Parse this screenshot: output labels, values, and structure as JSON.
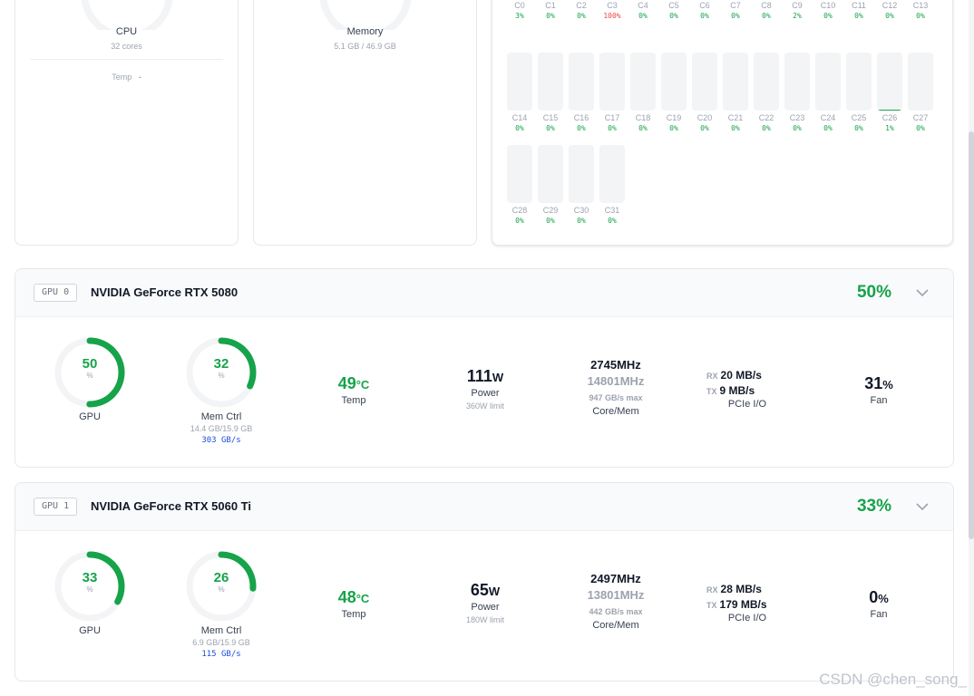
{
  "cpu_card": {
    "label": "CPU",
    "cores": "32 cores",
    "temp_label": "Temp",
    "temp_value": "-"
  },
  "memory_card": {
    "label": "Memory",
    "usage": "5.1 GB / 46.9 GB"
  },
  "cores": [
    {
      "name": "C0",
      "pct": "3%",
      "value": 3
    },
    {
      "name": "C1",
      "pct": "0%",
      "value": 0
    },
    {
      "name": "C2",
      "pct": "0%",
      "value": 0
    },
    {
      "name": "C3",
      "pct": "100%",
      "value": 100
    },
    {
      "name": "C4",
      "pct": "0%",
      "value": 0
    },
    {
      "name": "C5",
      "pct": "0%",
      "value": 0
    },
    {
      "name": "C6",
      "pct": "0%",
      "value": 0
    },
    {
      "name": "C7",
      "pct": "0%",
      "value": 0
    },
    {
      "name": "C8",
      "pct": "0%",
      "value": 0
    },
    {
      "name": "C9",
      "pct": "2%",
      "value": 2
    },
    {
      "name": "C10",
      "pct": "0%",
      "value": 0
    },
    {
      "name": "C11",
      "pct": "0%",
      "value": 0
    },
    {
      "name": "C12",
      "pct": "0%",
      "value": 0
    },
    {
      "name": "C13",
      "pct": "0%",
      "value": 0
    },
    {
      "name": "C14",
      "pct": "0%",
      "value": 0
    },
    {
      "name": "C15",
      "pct": "0%",
      "value": 0
    },
    {
      "name": "C16",
      "pct": "0%",
      "value": 0
    },
    {
      "name": "C17",
      "pct": "0%",
      "value": 0
    },
    {
      "name": "C18",
      "pct": "0%",
      "value": 0
    },
    {
      "name": "C19",
      "pct": "0%",
      "value": 0
    },
    {
      "name": "C20",
      "pct": "0%",
      "value": 0
    },
    {
      "name": "C21",
      "pct": "0%",
      "value": 0
    },
    {
      "name": "C22",
      "pct": "0%",
      "value": 0
    },
    {
      "name": "C23",
      "pct": "0%",
      "value": 0
    },
    {
      "name": "C24",
      "pct": "0%",
      "value": 0
    },
    {
      "name": "C25",
      "pct": "0%",
      "value": 0
    },
    {
      "name": "C26",
      "pct": "1%",
      "value": 1
    },
    {
      "name": "C27",
      "pct": "0%",
      "value": 0
    },
    {
      "name": "C28",
      "pct": "0%",
      "value": 0
    },
    {
      "name": "C29",
      "pct": "0%",
      "value": 0
    },
    {
      "name": "C30",
      "pct": "0%",
      "value": 0
    },
    {
      "name": "C31",
      "pct": "0%",
      "value": 0
    }
  ],
  "gpus": [
    {
      "badge": "GPU 0",
      "name": "NVIDIA GeForce RTX 5080",
      "util": "50%",
      "gpu_gauge": {
        "value": "50",
        "pct_sign": "%",
        "label": "GPU",
        "level": 50
      },
      "mem_gauge": {
        "value": "32",
        "pct_sign": "%",
        "label": "Mem Ctrl",
        "usage": "14.4 GB/15.9 GB",
        "bandwidth": "303 GB/s",
        "level": 32
      },
      "temp": {
        "value": "49",
        "unit": "°C",
        "label": "Temp"
      },
      "power": {
        "value": "111",
        "unit": "W",
        "label": "Power",
        "limit": "360W limit"
      },
      "clock": {
        "core": "2745",
        "mem": "14801",
        "unit": "MHz",
        "max": "947 GB/s max",
        "label": "Core/Mem"
      },
      "pcie": {
        "rx_tag": "RX",
        "rx": "20 MB/s",
        "tx_tag": "TX",
        "tx": "9 MB/s",
        "label": "PCIe I/O"
      },
      "fan": {
        "value": "31",
        "unit": "%",
        "label": "Fan"
      }
    },
    {
      "badge": "GPU 1",
      "name": "NVIDIA GeForce RTX 5060 Ti",
      "util": "33%",
      "gpu_gauge": {
        "value": "33",
        "pct_sign": "%",
        "label": "GPU",
        "level": 33
      },
      "mem_gauge": {
        "value": "26",
        "pct_sign": "%",
        "label": "Mem Ctrl",
        "usage": "6.9 GB/15.9 GB",
        "bandwidth": "115 GB/s",
        "level": 26
      },
      "temp": {
        "value": "48",
        "unit": "°C",
        "label": "Temp"
      },
      "power": {
        "value": "65",
        "unit": "W",
        "label": "Power",
        "limit": "180W limit"
      },
      "clock": {
        "core": "2497",
        "mem": "13801",
        "unit": "MHz",
        "max": "442 GB/s max",
        "label": "Core/Mem"
      },
      "pcie": {
        "rx_tag": "RX",
        "rx": "28 MB/s",
        "tx_tag": "TX",
        "tx": "179 MB/s",
        "label": "PCIe I/O"
      },
      "fan": {
        "value": "0",
        "unit": "%",
        "label": "Fan"
      }
    }
  ],
  "watermark": "CSDN @chen_song_",
  "colors": {
    "accent": "#16a34a",
    "hot": "#ef4444",
    "track": "#f3f4f6",
    "link": "#1d4ed8"
  }
}
